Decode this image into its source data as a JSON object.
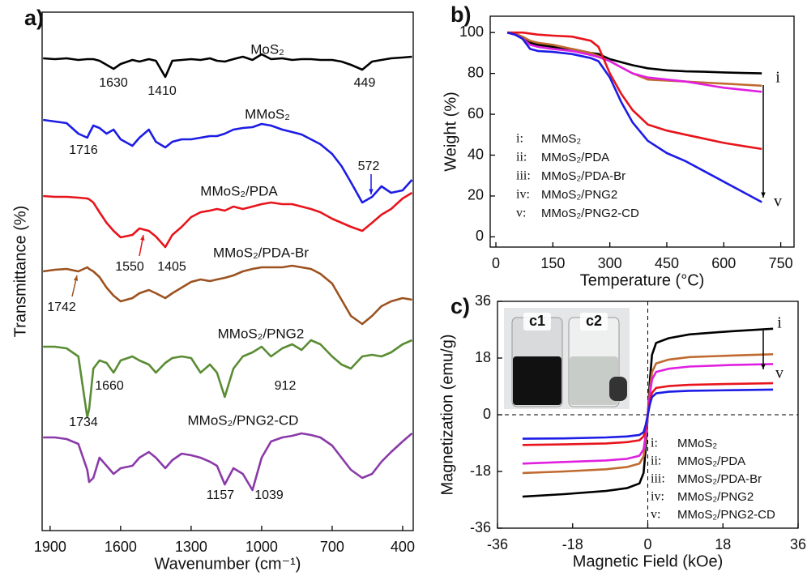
{
  "chart_data": [
    {
      "type": "line",
      "panel_label": "a)",
      "xlabel": "Wavenumber (cm⁻¹)",
      "ylabel": "Transmittance (%)",
      "xlim": [
        1934,
        355
      ],
      "ylim": [
        0,
        640
      ],
      "xticks": [
        1900,
        1600,
        1300,
        1000,
        700,
        400
      ],
      "x": [
        1930,
        1880,
        1830,
        1780,
        1742,
        1734,
        1716,
        1690,
        1660,
        1630,
        1600,
        1550,
        1520,
        1480,
        1450,
        1410,
        1380,
        1340,
        1300,
        1260,
        1220,
        1190,
        1157,
        1120,
        1080,
        1039,
        1000,
        960,
        912,
        870,
        830,
        790,
        750,
        700,
        660,
        620,
        572,
        530,
        490,
        449,
        400,
        360
      ],
      "series": [
        {
          "name": "MoS₂",
          "color": "#000000",
          "annotations": [
            "1630",
            "1410",
            "449"
          ],
          "values": [
            583,
            582,
            583,
            581,
            582,
            582,
            582,
            580,
            575,
            570,
            576,
            581,
            579,
            582,
            580,
            560,
            580,
            581,
            582,
            581,
            583,
            580,
            579,
            582,
            585,
            581,
            588,
            582,
            583,
            581,
            582,
            582,
            581,
            581,
            579,
            575,
            569,
            579,
            581,
            583,
            584,
            585
          ]
        },
        {
          "name": "MMoS₂",
          "color": "#1c1ce6",
          "annotations": [
            "1716",
            "572"
          ],
          "values": [
            507,
            505,
            503,
            490,
            485,
            490,
            500,
            497,
            490,
            495,
            483,
            475,
            485,
            495,
            480,
            473,
            480,
            483,
            483,
            485,
            487,
            487,
            490,
            495,
            497,
            498,
            502,
            500,
            495,
            492,
            489,
            483,
            477,
            465,
            450,
            430,
            405,
            412,
            425,
            417,
            420,
            433
          ]
        },
        {
          "name": "MMoS₂/PDA",
          "color": "#e8141c",
          "annotations": [
            "1550",
            "1405"
          ],
          "values": [
            413,
            412,
            412,
            411,
            410,
            409,
            405,
            393,
            380,
            370,
            362,
            365,
            373,
            370,
            363,
            350,
            365,
            375,
            387,
            393,
            395,
            397,
            395,
            400,
            397,
            400,
            403,
            405,
            403,
            403,
            400,
            397,
            393,
            385,
            380,
            375,
            370,
            380,
            390,
            397,
            410,
            417
          ]
        },
        {
          "name": "MMoS₂/PDA-Br",
          "color": "#9c5220",
          "annotations": [
            "1742"
          ],
          "values": [
            320,
            322,
            323,
            320,
            325,
            323,
            320,
            313,
            300,
            290,
            283,
            287,
            293,
            297,
            293,
            287,
            293,
            300,
            307,
            310,
            308,
            310,
            312,
            315,
            320,
            323,
            325,
            325,
            325,
            327,
            325,
            323,
            317,
            305,
            285,
            265,
            255,
            265,
            277,
            283,
            287,
            285
          ]
        },
        {
          "name": "MMoS₂/PNG2",
          "color": "#5a8c34",
          "annotations": [
            "1660",
            "912",
            "1734"
          ],
          "values": [
            227,
            227,
            225,
            215,
            140,
            150,
            200,
            210,
            207,
            195,
            210,
            215,
            210,
            205,
            195,
            207,
            213,
            215,
            213,
            195,
            205,
            195,
            165,
            200,
            215,
            220,
            227,
            215,
            225,
            230,
            223,
            235,
            230,
            215,
            205,
            200,
            215,
            217,
            215,
            220,
            230,
            235
          ]
        },
        {
          "name": "MMoS₂/PNG2-CD",
          "color": "#8a3aa8",
          "annotations": [
            "1157",
            "1039"
          ],
          "values": [
            115,
            115,
            113,
            107,
            75,
            60,
            65,
            90,
            80,
            70,
            77,
            80,
            90,
            97,
            90,
            77,
            87,
            95,
            93,
            90,
            85,
            80,
            57,
            77,
            70,
            50,
            90,
            110,
            115,
            117,
            120,
            118,
            115,
            105,
            90,
            75,
            65,
            70,
            85,
            97,
            110,
            120
          ]
        }
      ]
    },
    {
      "type": "line",
      "panel_label": "b)",
      "xlabel": "Temperature (°C)",
      "ylabel": "Weight (%)",
      "xlim": [
        -15,
        785
      ],
      "ylim": [
        -5,
        108
      ],
      "xticks": [
        0,
        150,
        300,
        450,
        600,
        750
      ],
      "yticks": [
        0,
        20,
        40,
        60,
        80,
        100
      ],
      "range_labels": [
        "i",
        "v"
      ],
      "x": [
        30,
        50,
        70,
        90,
        110,
        150,
        200,
        250,
        270,
        300,
        330,
        360,
        400,
        450,
        500,
        550,
        600,
        650,
        700
      ],
      "series": [
        {
          "tag": "i:",
          "name": "MMoS₂",
          "color": "#000000",
          "values": [
            100,
            99.5,
            97,
            95,
            94,
            93,
            92,
            90,
            89.5,
            87,
            85.5,
            84,
            82.5,
            81.5,
            81,
            80.8,
            80.5,
            80.2,
            80
          ]
        },
        {
          "tag": "ii:",
          "name": "MMoS₂/PDA",
          "color": "#c06a30",
          "values": [
            100,
            99.5,
            98,
            96,
            95,
            94,
            92,
            90,
            88.5,
            86,
            83,
            80,
            77,
            76.5,
            76,
            75.5,
            75,
            74.5,
            74
          ]
        },
        {
          "tag": "iii:",
          "name": "MMoS₂/PDA-Br",
          "color": "#e020e0",
          "values": [
            100,
            99,
            97,
            94,
            93,
            92,
            91,
            89,
            88,
            86,
            83,
            80,
            78,
            77,
            76,
            74.5,
            73,
            72,
            71
          ]
        },
        {
          "tag": "iv:",
          "name": "MMoS₂/PNG2",
          "color": "#e8141c",
          "values": [
            100,
            100,
            100,
            99.5,
            99,
            98.5,
            98,
            96,
            93,
            80,
            70,
            62,
            55,
            52,
            50,
            48,
            46,
            44.5,
            43
          ]
        },
        {
          "tag": "v:",
          "name": "MMoS₂/PNG2-CD",
          "color": "#1c1ce6",
          "values": [
            100,
            99,
            97,
            92,
            91,
            90.5,
            89.5,
            87.5,
            86,
            78,
            66,
            56,
            47,
            41,
            37,
            32,
            27,
            22,
            17
          ]
        }
      ]
    },
    {
      "type": "line",
      "panel_label": "c)",
      "xlabel": "Magnetic Field (kOe)",
      "ylabel": "Magnetization (emu/g)",
      "xlim": [
        -36,
        36
      ],
      "ylim": [
        -36,
        36
      ],
      "xticks": [
        -36,
        -18,
        0,
        18,
        36
      ],
      "yticks": [
        -36,
        -18,
        0,
        18,
        36
      ],
      "zero_lines": true,
      "range_labels": [
        "i",
        "v"
      ],
      "inset_labels": [
        "c1",
        "c2"
      ],
      "x": [
        -30,
        -20,
        -10,
        -5,
        -2,
        -1,
        -0.5,
        0,
        0.5,
        1,
        2,
        5,
        10,
        20,
        30
      ],
      "series": [
        {
          "tag": "i:",
          "name": "MMoS₂",
          "color": "#000000",
          "values": [
            -26,
            -25.2,
            -24.2,
            -23.3,
            -21.8,
            -18.5,
            -11,
            0,
            11,
            19,
            22.8,
            24.3,
            25.5,
            26.5,
            27.3
          ]
        },
        {
          "tag": "ii:",
          "name": "MMoS₂/PDA",
          "color": "#c06a30",
          "values": [
            -18.5,
            -18,
            -17.3,
            -16.6,
            -15.5,
            -13.2,
            -8,
            0,
            8,
            13.5,
            16.3,
            17.5,
            18.3,
            18.8,
            19.2
          ]
        },
        {
          "tag": "iii:",
          "name": "MMoS₂/PDA-Br",
          "color": "#e020e0",
          "values": [
            -15.5,
            -15,
            -14.5,
            -14,
            -13,
            -11,
            -6.5,
            0,
            6.5,
            11.2,
            13.6,
            14.6,
            15.3,
            15.8,
            16.1
          ]
        },
        {
          "tag": "iv:",
          "name": "MMoS₂/PNG2",
          "color": "#e8141c",
          "values": [
            -9.6,
            -9.4,
            -9.1,
            -8.7,
            -8.1,
            -6.9,
            -4.1,
            0,
            4.1,
            7,
            8.5,
            9.1,
            9.5,
            9.8,
            10
          ]
        },
        {
          "tag": "v:",
          "name": "MMoS₂/PNG2-CD",
          "color": "#1c1ce6",
          "values": [
            -7.6,
            -7.5,
            -7.2,
            -6.9,
            -6.4,
            -5.5,
            -3.3,
            0,
            3.3,
            5.6,
            6.8,
            7.3,
            7.6,
            7.8,
            8
          ]
        }
      ]
    }
  ]
}
